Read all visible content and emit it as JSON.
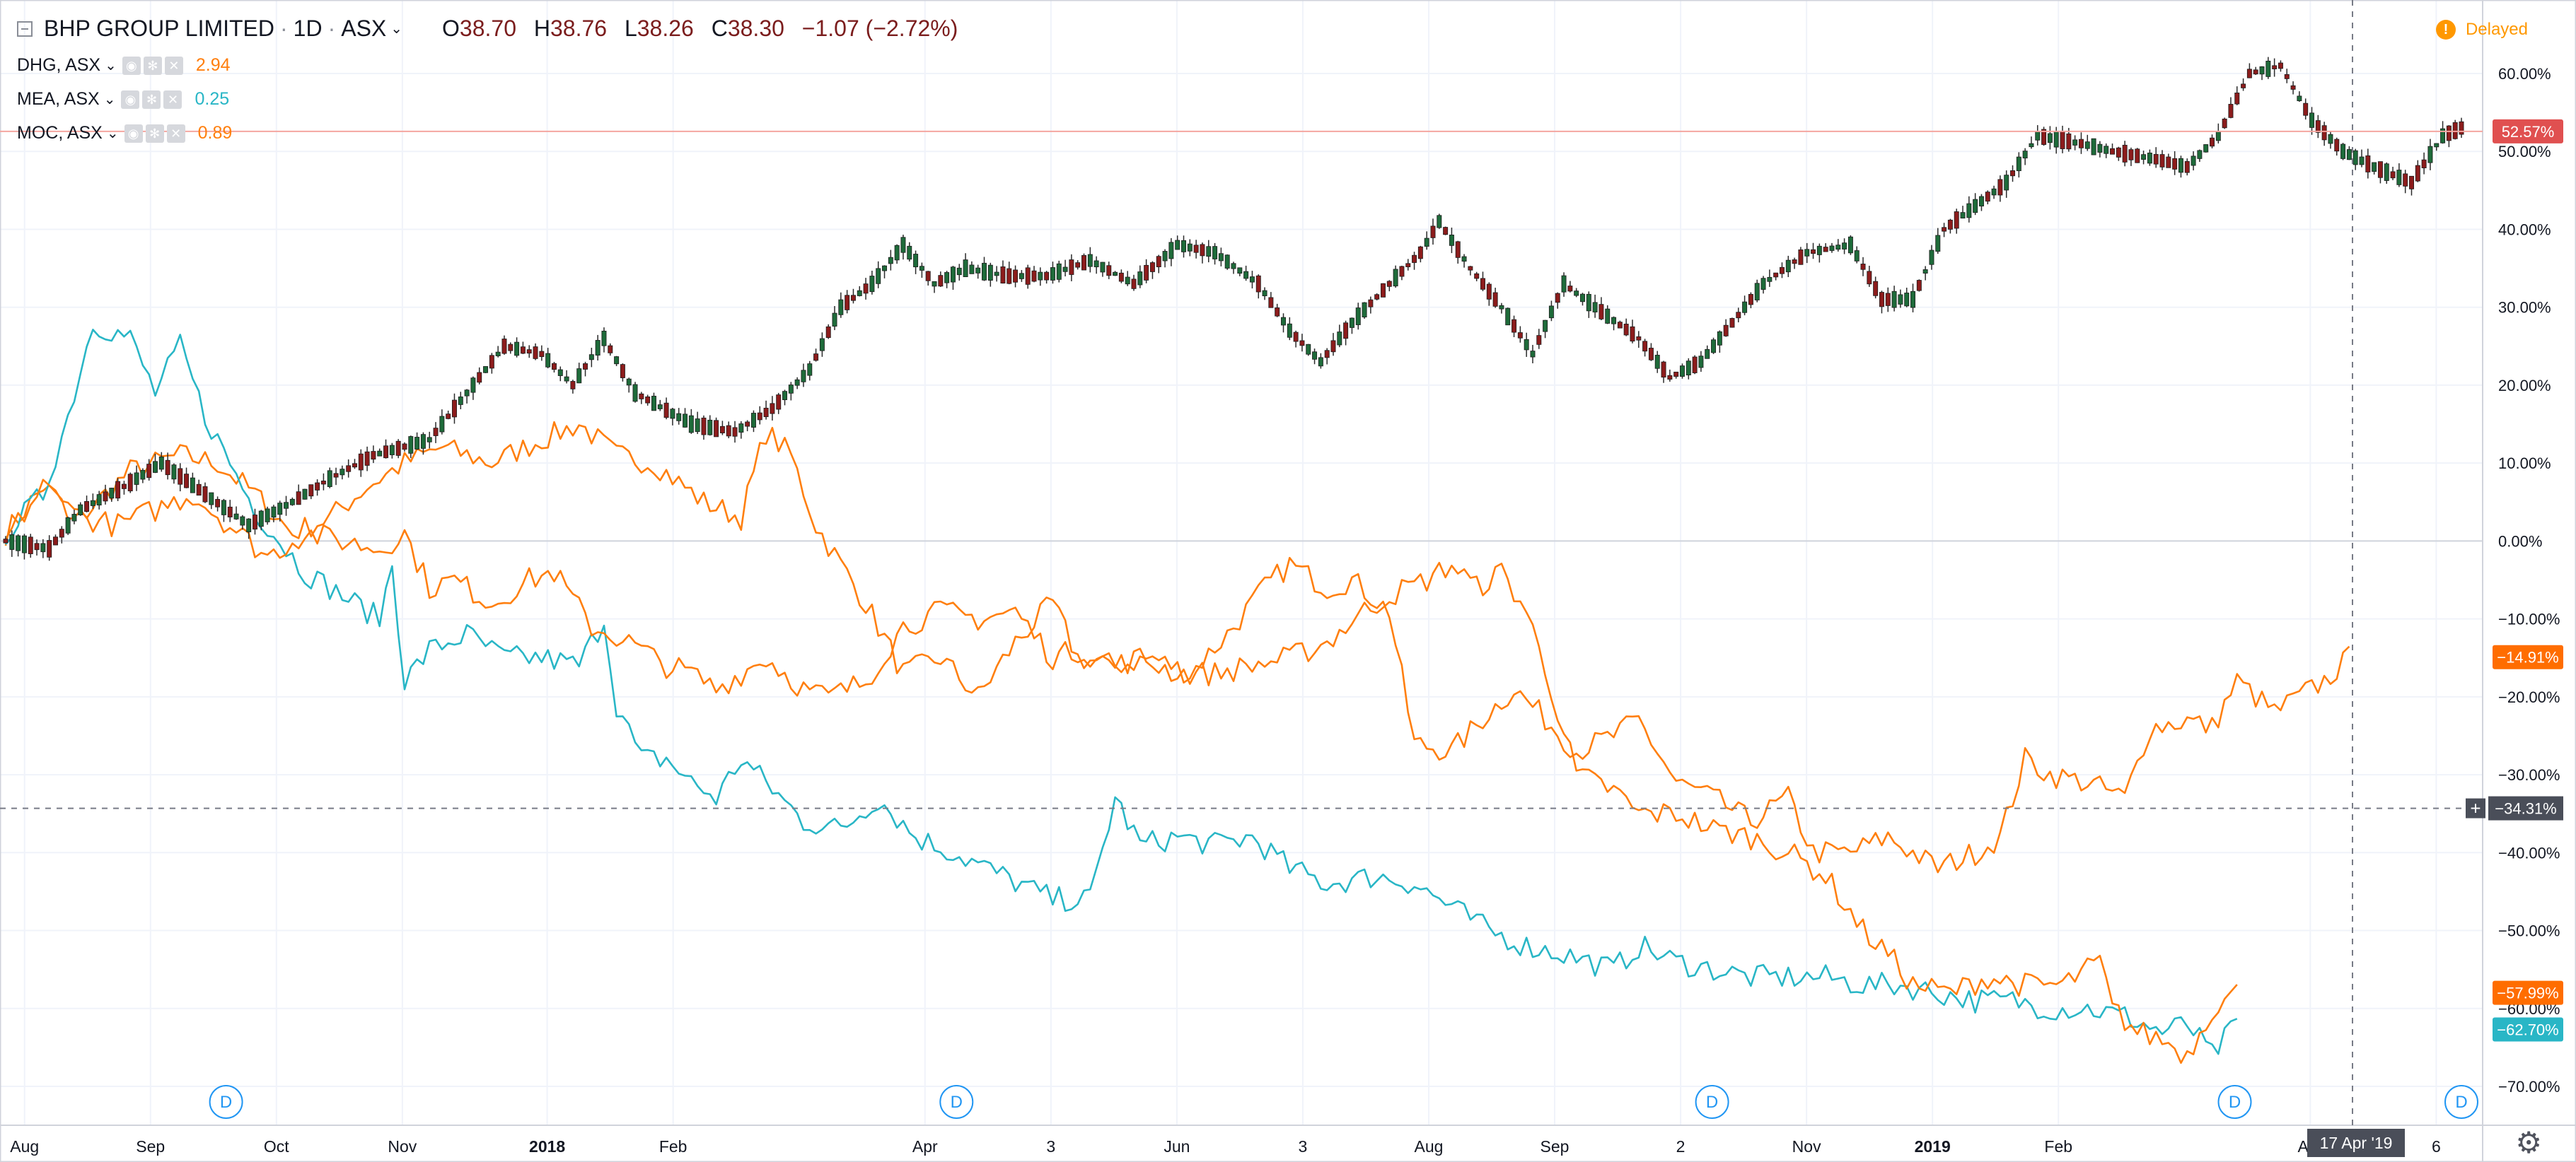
{
  "header": {
    "symbol_title": "BHP GROUP LIMITED",
    "interval": "1D",
    "exchange": "ASX",
    "separator": "·",
    "ohlc": {
      "o_label": "O",
      "o": "38.70",
      "h_label": "H",
      "h": "38.76",
      "l_label": "L",
      "l": "38.26",
      "c_label": "C",
      "c": "38.30"
    },
    "change": "−1.07 (−2.72%)",
    "status": "Delayed"
  },
  "compare_symbols": [
    {
      "name": "DHG, ASX",
      "value": "2.94",
      "color": "#ff7f0e"
    },
    {
      "name": "MEA, ASX",
      "value": "0.25",
      "color": "#29b6c6"
    },
    {
      "name": "MOC, ASX",
      "value": "0.89",
      "color": "#ff7f0e"
    }
  ],
  "icons": [
    "collapse-icon",
    "chevron-down-icon",
    "eye-icon",
    "gear-icon",
    "close-icon",
    "warning-icon",
    "dividend-marker-icon",
    "settings-gear-icon"
  ],
  "colors": {
    "candle_up": "#26a69a",
    "candle_down": "#ef5350",
    "candle_up_dark": "#1b5e20",
    "candle_down_dark": "#8b0000",
    "orange": "#ff7f0e",
    "teal": "#29b6c6",
    "main_price_badge": "#e05050",
    "grid": "#f0f3fa",
    "crosshair_badge": "#4a4e59"
  },
  "crosshair": {
    "date_label": "17 Apr '19",
    "value_label": "−34.31%"
  },
  "price_badges": [
    {
      "label": "52.57%",
      "series": "BHP",
      "color": "#e05050"
    },
    {
      "label": "−14.91%",
      "series": "DHG",
      "color": "#ff6d00"
    },
    {
      "label": "−57.99%",
      "series": "MOC",
      "color": "#ff6d00"
    },
    {
      "label": "−62.70%",
      "series": "MEA",
      "color": "#29b6c6"
    }
  ],
  "dividend_marker": "D",
  "chart_data": {
    "type": "line",
    "y_unit": "percent change",
    "ylim": [
      -75,
      63
    ],
    "yticks": [
      60,
      50,
      40,
      30,
      20,
      10,
      0,
      -10,
      -20,
      -30,
      -40,
      -50,
      -60,
      -70
    ],
    "ytick_labels": [
      "60.00%",
      "50.00%",
      "40.00%",
      "30.00%",
      "20.00%",
      "10.00%",
      "0.00%",
      "−10.00%",
      "−20.00%",
      "−30.00%",
      "−40.00%",
      "−50.00%",
      "−60.00%",
      "−70.00%"
    ],
    "xticks": [
      "Aug",
      "Sep",
      "Oct",
      "Nov",
      "2018",
      "Feb",
      "Apr",
      "3",
      "Jun",
      "3",
      "Aug",
      "Sep",
      "2",
      "Nov",
      "2019",
      "Feb",
      "Apr",
      "6"
    ],
    "xtick_index": [
      3,
      23,
      43,
      63,
      86,
      106,
      146,
      166,
      186,
      206,
      226,
      246,
      266,
      286,
      306,
      326,
      366,
      386
    ],
    "x_count": 395,
    "grid": true,
    "dividend_index": [
      35,
      151,
      271,
      354,
      390
    ],
    "candlestick": {
      "name": "BHP",
      "anchors": [
        [
          0,
          0
        ],
        [
          8,
          -1
        ],
        [
          14,
          4
        ],
        [
          22,
          7
        ],
        [
          30,
          10
        ],
        [
          38,
          6
        ],
        [
          46,
          2
        ],
        [
          54,
          5
        ],
        [
          62,
          8
        ],
        [
          70,
          11
        ],
        [
          80,
          13
        ],
        [
          88,
          19
        ],
        [
          95,
          25
        ],
        [
          102,
          24
        ],
        [
          108,
          20
        ],
        [
          114,
          26
        ],
        [
          120,
          19
        ],
        [
          130,
          15
        ],
        [
          138,
          14
        ],
        [
          146,
          17
        ],
        [
          152,
          22
        ],
        [
          158,
          30
        ],
        [
          164,
          33
        ],
        [
          170,
          38
        ],
        [
          176,
          33
        ],
        [
          182,
          35
        ],
        [
          190,
          34
        ],
        [
          198,
          34
        ],
        [
          206,
          36
        ],
        [
          214,
          33
        ],
        [
          222,
          38
        ],
        [
          230,
          37
        ],
        [
          238,
          33
        ],
        [
          244,
          27
        ],
        [
          250,
          23
        ],
        [
          256,
          28
        ],
        [
          262,
          33
        ],
        [
          268,
          37
        ],
        [
          272,
          41
        ],
        [
          278,
          35
        ],
        [
          284,
          30
        ],
        [
          290,
          24
        ],
        [
          296,
          33
        ],
        [
          302,
          30
        ],
        [
          310,
          26
        ],
        [
          316,
          21
        ],
        [
          322,
          23
        ],
        [
          328,
          28
        ],
        [
          334,
          33
        ],
        [
          342,
          37
        ],
        [
          350,
          38
        ],
        [
          356,
          31
        ],
        [
          362,
          31
        ],
        [
          368,
          40
        ],
        [
          374,
          43
        ],
        [
          380,
          46
        ],
        [
          386,
          52
        ],
        [
          394,
          51
        ]
      ],
      "anchors_tail": [
        [
          400,
          50
        ],
        [
          408,
          49
        ],
        [
          414,
          48
        ],
        [
          420,
          52
        ],
        [
          426,
          60
        ],
        [
          432,
          61
        ],
        [
          438,
          54
        ],
        [
          444,
          50
        ],
        [
          450,
          48
        ],
        [
          456,
          46
        ],
        [
          462,
          52
        ],
        [
          466,
          53
        ]
      ]
    },
    "series": [
      {
        "name": "DHG",
        "color": "#ff7f0e",
        "values_anchor": [
          [
            0,
            1
          ],
          [
            6,
            7
          ],
          [
            12,
            3
          ],
          [
            20,
            9
          ],
          [
            28,
            11
          ],
          [
            34,
            10
          ],
          [
            40,
            6
          ],
          [
            46,
            1
          ],
          [
            52,
            3
          ],
          [
            58,
            7
          ],
          [
            64,
            10
          ],
          [
            70,
            12
          ],
          [
            78,
            10
          ],
          [
            86,
            13
          ],
          [
            92,
            15
          ],
          [
            98,
            11
          ],
          [
            104,
            10
          ],
          [
            112,
            5
          ],
          [
            118,
            3
          ],
          [
            122,
            14
          ],
          [
            126,
            11
          ],
          [
            130,
            2
          ],
          [
            134,
            -3
          ],
          [
            138,
            -8
          ],
          [
            144,
            -17
          ],
          [
            150,
            -15
          ],
          [
            156,
            -20
          ],
          [
            162,
            -13
          ],
          [
            168,
            -8
          ],
          [
            172,
            -15
          ],
          [
            178,
            -16
          ],
          [
            184,
            -15
          ],
          [
            190,
            -17
          ],
          [
            196,
            -12
          ],
          [
            202,
            -6
          ],
          [
            206,
            -3
          ],
          [
            212,
            -6
          ],
          [
            216,
            -5
          ],
          [
            222,
            -9
          ],
          [
            226,
            -26
          ],
          [
            232,
            -27
          ],
          [
            238,
            -22
          ],
          [
            242,
            -19
          ],
          [
            246,
            -22
          ],
          [
            252,
            -27
          ],
          [
            258,
            -25
          ],
          [
            262,
            -23
          ],
          [
            268,
            -31
          ],
          [
            274,
            -33
          ],
          [
            280,
            -36
          ],
          [
            286,
            -33
          ],
          [
            290,
            -40
          ],
          [
            296,
            -40
          ],
          [
            302,
            -38
          ],
          [
            306,
            -40
          ],
          [
            310,
            -42
          ],
          [
            316,
            -40
          ],
          [
            320,
            -38
          ],
          [
            324,
            -28
          ],
          [
            328,
            -30
          ],
          [
            334,
            -31
          ],
          [
            340,
            -33
          ],
          [
            344,
            -24
          ],
          [
            350,
            -23
          ],
          [
            354,
            -24
          ],
          [
            358,
            -18
          ],
          [
            364,
            -22
          ],
          [
            368,
            -20
          ],
          [
            372,
            -18
          ],
          [
            376,
            -15
          ]
        ]
      },
      {
        "name": "MEA",
        "color": "#29b6c6",
        "values_anchor": [
          [
            0,
            1
          ],
          [
            6,
            6
          ],
          [
            10,
            16
          ],
          [
            14,
            28
          ],
          [
            20,
            26
          ],
          [
            24,
            19
          ],
          [
            28,
            25
          ],
          [
            32,
            16
          ],
          [
            36,
            10
          ],
          [
            40,
            4
          ],
          [
            44,
            0
          ],
          [
            48,
            -4
          ],
          [
            52,
            -6
          ],
          [
            56,
            -8
          ],
          [
            60,
            -10
          ],
          [
            62,
            -3
          ],
          [
            64,
            -18
          ],
          [
            68,
            -14
          ],
          [
            74,
            -12
          ],
          [
            80,
            -15
          ],
          [
            86,
            -15
          ],
          [
            92,
            -16
          ],
          [
            96,
            -10
          ],
          [
            98,
            -21
          ],
          [
            102,
            -28
          ],
          [
            106,
            -28
          ],
          [
            110,
            -31
          ],
          [
            114,
            -33
          ],
          [
            118,
            -28
          ],
          [
            122,
            -31
          ],
          [
            128,
            -36
          ],
          [
            134,
            -37
          ],
          [
            140,
            -33
          ],
          [
            146,
            -38
          ],
          [
            152,
            -40
          ],
          [
            160,
            -43
          ],
          [
            168,
            -46
          ],
          [
            174,
            -46
          ],
          [
            178,
            -33
          ],
          [
            182,
            -39
          ],
          [
            188,
            -38
          ],
          [
            194,
            -39
          ],
          [
            200,
            -38
          ],
          [
            206,
            -42
          ],
          [
            212,
            -44
          ],
          [
            220,
            -43
          ],
          [
            226,
            -44
          ],
          [
            232,
            -47
          ],
          [
            238,
            -50
          ],
          [
            244,
            -52
          ],
          [
            250,
            -53
          ],
          [
            258,
            -55
          ],
          [
            262,
            -52
          ],
          [
            268,
            -54
          ],
          [
            274,
            -55
          ],
          [
            280,
            -56
          ],
          [
            286,
            -56
          ],
          [
            292,
            -56
          ],
          [
            298,
            -57
          ],
          [
            304,
            -57
          ],
          [
            310,
            -58
          ],
          [
            316,
            -59
          ],
          [
            322,
            -59
          ],
          [
            328,
            -60
          ],
          [
            334,
            -60
          ],
          [
            340,
            -61
          ],
          [
            346,
            -63
          ],
          [
            350,
            -62
          ],
          [
            354,
            -66
          ],
          [
            356,
            -64
          ],
          [
            358,
            -62
          ]
        ]
      },
      {
        "name": "MOC",
        "color": "#ff7f0e",
        "values_anchor": [
          [
            0,
            0
          ],
          [
            6,
            7
          ],
          [
            12,
            3
          ],
          [
            18,
            2
          ],
          [
            24,
            4
          ],
          [
            30,
            6
          ],
          [
            36,
            2
          ],
          [
            42,
            -2
          ],
          [
            48,
            1
          ],
          [
            54,
            0
          ],
          [
            60,
            -1
          ],
          [
            64,
            1
          ],
          [
            68,
            -6
          ],
          [
            72,
            -5
          ],
          [
            78,
            -8
          ],
          [
            84,
            -5
          ],
          [
            88,
            -4
          ],
          [
            94,
            -11
          ],
          [
            100,
            -13
          ],
          [
            106,
            -16
          ],
          [
            110,
            -17
          ],
          [
            114,
            -19
          ],
          [
            118,
            -17
          ],
          [
            122,
            -15
          ],
          [
            128,
            -19
          ],
          [
            132,
            -20
          ],
          [
            138,
            -18
          ],
          [
            144,
            -11
          ],
          [
            150,
            -9
          ],
          [
            156,
            -10
          ],
          [
            162,
            -9
          ],
          [
            168,
            -15
          ],
          [
            172,
            -14
          ],
          [
            178,
            -16
          ],
          [
            182,
            -15
          ],
          [
            188,
            -17
          ],
          [
            194,
            -17
          ],
          [
            200,
            -16
          ],
          [
            206,
            -15
          ],
          [
            212,
            -13
          ],
          [
            218,
            -9
          ],
          [
            222,
            -7
          ],
          [
            228,
            -5
          ],
          [
            232,
            -3
          ],
          [
            236,
            -6
          ],
          [
            240,
            -4
          ],
          [
            244,
            -9
          ],
          [
            248,
            -19
          ],
          [
            252,
            -30
          ],
          [
            258,
            -32
          ],
          [
            262,
            -35
          ],
          [
            268,
            -35
          ],
          [
            274,
            -37
          ],
          [
            280,
            -38
          ],
          [
            286,
            -40
          ],
          [
            292,
            -43
          ],
          [
            298,
            -50
          ],
          [
            302,
            -53
          ],
          [
            306,
            -57
          ],
          [
            312,
            -58
          ],
          [
            318,
            -56
          ],
          [
            324,
            -57
          ],
          [
            330,
            -57
          ],
          [
            334,
            -55
          ],
          [
            336,
            -54
          ],
          [
            338,
            -60
          ],
          [
            342,
            -63
          ],
          [
            346,
            -64
          ],
          [
            350,
            -66
          ],
          [
            354,
            -60
          ],
          [
            358,
            -58
          ]
        ]
      }
    ]
  }
}
